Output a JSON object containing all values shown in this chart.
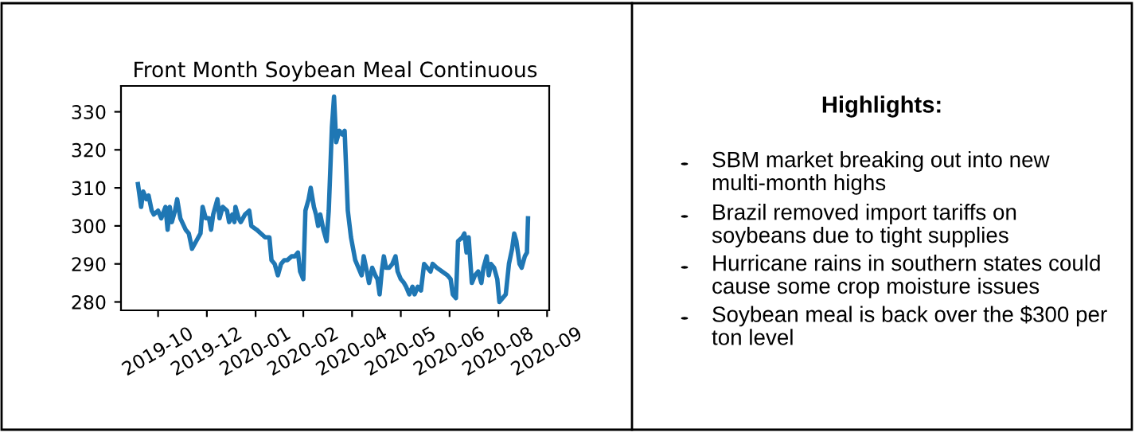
{
  "chart_data": [
    {
      "type": "line",
      "title": "Front Month Soybean Meal Continuous",
      "x": [
        "2019-09-12",
        "2019-09-15",
        "2019-09-17",
        "2019-09-20",
        "2019-09-22",
        "2019-09-25",
        "2019-09-27",
        "2019-10-01",
        "2019-10-04",
        "2019-10-08",
        "2019-10-10",
        "2019-10-12",
        "2019-10-14",
        "2019-10-17",
        "2019-10-19",
        "2019-10-22",
        "2019-10-27",
        "2019-10-30",
        "2019-11-02",
        "2019-11-06",
        "2019-11-10",
        "2019-11-12",
        "2019-11-15",
        "2019-11-18",
        "2019-11-20",
        "2019-11-22",
        "2019-11-26",
        "2019-11-28",
        "2019-12-01",
        "2019-12-05",
        "2019-12-07",
        "2019-12-10",
        "2019-12-12",
        "2019-12-13",
        "2019-12-16",
        "2019-12-18",
        "2019-12-22",
        "2019-12-26",
        "2019-12-28",
        "2020-01-02",
        "2020-01-06",
        "2020-01-10",
        "2020-01-14",
        "2020-01-16",
        "2020-01-19",
        "2020-01-22",
        "2020-01-25",
        "2020-01-28",
        "2020-01-31",
        "2020-02-04",
        "2020-02-07",
        "2020-02-10",
        "2020-02-12",
        "2020-02-15",
        "2020-02-17",
        "2020-02-20",
        "2020-02-22",
        "2020-02-25",
        "2020-02-27",
        "2020-02-29",
        "2020-03-02",
        "2020-03-05",
        "2020-03-08",
        "2020-03-10",
        "2020-03-13",
        "2020-03-15",
        "2020-03-17",
        "2020-03-20",
        "2020-03-23",
        "2020-03-25",
        "2020-03-28",
        "2020-03-31",
        "2020-04-04",
        "2020-04-07",
        "2020-04-10",
        "2020-04-12",
        "2020-04-15",
        "2020-04-17",
        "2020-04-20",
        "2020-04-23",
        "2020-04-25",
        "2020-04-27",
        "2020-04-29",
        "2020-05-01",
        "2020-05-03",
        "2020-05-06",
        "2020-05-09",
        "2020-05-12",
        "2020-05-14",
        "2020-05-17",
        "2020-05-20",
        "2020-05-22",
        "2020-05-25",
        "2020-05-28",
        "2020-05-30",
        "2020-06-02",
        "2020-06-05",
        "2020-06-08",
        "2020-06-11",
        "2020-06-14",
        "2020-06-16",
        "2020-06-20",
        "2020-06-25",
        "2020-06-30",
        "2020-07-03",
        "2020-07-05",
        "2020-07-08",
        "2020-07-10",
        "2020-07-14",
        "2020-07-16",
        "2020-07-18",
        "2020-07-20",
        "2020-07-23",
        "2020-07-26",
        "2020-07-29",
        "2020-08-01",
        "2020-08-03",
        "2020-08-06",
        "2020-08-08",
        "2020-08-10",
        "2020-08-13",
        "2020-08-16",
        "2020-08-18",
        "2020-08-21",
        "2020-08-24",
        "2020-08-27",
        "2020-08-30",
        "2020-09-01",
        "2020-09-03",
        "2020-09-06",
        "2020-09-08",
        "2020-09-11",
        "2020-09-13",
        "2020-09-14"
      ],
      "series": [
        {
          "color": "#1f77b4",
          "values": [
            311,
            305,
            309,
            307,
            308,
            304,
            303,
            304,
            302,
            305,
            299,
            305,
            301,
            304,
            307,
            302,
            299,
            298,
            294,
            296,
            298,
            305,
            302,
            302,
            299,
            303,
            307,
            302,
            305,
            304,
            301,
            303,
            301,
            305,
            302,
            301,
            303,
            304,
            300,
            299,
            298,
            297,
            297,
            291,
            290,
            287,
            290,
            291,
            291,
            292,
            292,
            293,
            288,
            286,
            304,
            307,
            310,
            305,
            303,
            300,
            303,
            299,
            296,
            304,
            326,
            334,
            322,
            325,
            324,
            325,
            304,
            297,
            291,
            289,
            287,
            292,
            288,
            285,
            289,
            287,
            286,
            282,
            288,
            292,
            289,
            289,
            290,
            292,
            288,
            286,
            285,
            284,
            282,
            284,
            282,
            284,
            283,
            290,
            289,
            288,
            290,
            289,
            288,
            287,
            286,
            282,
            281,
            296,
            297,
            298,
            293,
            297,
            285,
            287,
            288,
            285,
            289,
            292,
            287,
            290,
            289,
            286,
            280,
            281,
            282,
            290,
            294,
            298,
            296,
            290,
            289,
            292,
            293,
            302
          ]
        }
      ],
      "xlim": [
        "2019-08-27",
        "2020-10-04"
      ],
      "xticks": [
        {
          "value": "2019-10-01",
          "label": "2019-10"
        },
        {
          "value": "2019-11-16",
          "label": "2019-12"
        },
        {
          "value": "2020-01-01",
          "label": "2020-01"
        },
        {
          "value": "2020-02-15",
          "label": "2020-02"
        },
        {
          "value": "2020-04-01",
          "label": "2020-04"
        },
        {
          "value": "2020-05-17",
          "label": "2020-05"
        },
        {
          "value": "2020-07-02",
          "label": "2020-06"
        },
        {
          "value": "2020-08-17",
          "label": "2020-08"
        },
        {
          "value": "2020-10-02",
          "label": "2020-09"
        }
      ],
      "ylim": [
        277.8,
        336.8
      ],
      "yticks": [
        280,
        290,
        300,
        310,
        320,
        330
      ],
      "grid": false,
      "legend": false,
      "line_style": "solid",
      "marker": "none"
    },
    {
      "type": "other",
      "title": "Highlights:",
      "annotations": [
        "SBM market breaking out into new multi-month highs",
        "Brazil removed import tariffs on soybeans due to tight supplies",
        "Hurricane rains in southern states could cause some crop moisture issues",
        "Soybean meal is back over the $300 per ton level"
      ]
    }
  ]
}
